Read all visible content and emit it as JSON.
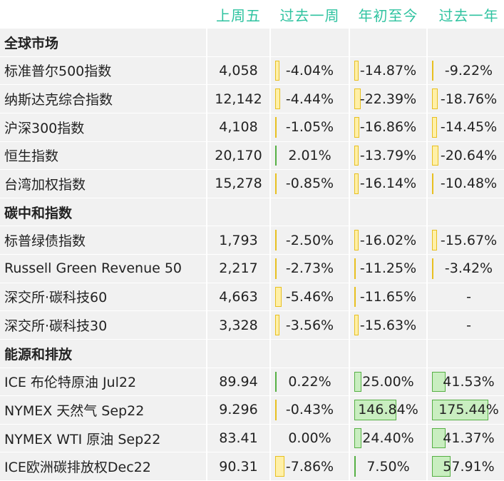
{
  "headers": [
    "",
    "上周五",
    "过去一周",
    "年初至今",
    "过去一年"
  ],
  "rows": [
    {
      "type": "section",
      "name": "全球市场"
    },
    {
      "type": "data",
      "name": "标准普尔500指数",
      "close": "4,058",
      "week": {
        "text": "-4.04%",
        "value": -4.04
      },
      "ytd": {
        "text": "-14.87%",
        "value": -14.87
      },
      "year": {
        "text": "-9.22%",
        "value": -9.22
      }
    },
    {
      "type": "data",
      "name": "纳斯达克综合指数",
      "close": "12,142",
      "week": {
        "text": "-4.44%",
        "value": -4.44
      },
      "ytd": {
        "text": "-22.39%",
        "value": -22.39
      },
      "year": {
        "text": "-18.76%",
        "value": -18.76
      }
    },
    {
      "type": "data",
      "name": "沪深300指数",
      "close": "4,108",
      "week": {
        "text": "-1.05%",
        "value": -1.05
      },
      "ytd": {
        "text": "-16.86%",
        "value": -16.86
      },
      "year": {
        "text": "-14.45%",
        "value": -14.45
      }
    },
    {
      "type": "data",
      "name": "恒生指数",
      "close": "20,170",
      "week": {
        "text": "2.01%",
        "value": 2.01
      },
      "ytd": {
        "text": "-13.79%",
        "value": -13.79
      },
      "year": {
        "text": "-20.64%",
        "value": -20.64
      }
    },
    {
      "type": "data",
      "name": "台湾加权指数",
      "close": "15,278",
      "week": {
        "text": "-0.85%",
        "value": -0.85
      },
      "ytd": {
        "text": "-16.14%",
        "value": -16.14
      },
      "year": {
        "text": "-10.48%",
        "value": -10.48
      }
    },
    {
      "type": "section",
      "name": "碳中和指数"
    },
    {
      "type": "data",
      "name": "标普绿债指数",
      "close": "1,793",
      "week": {
        "text": "-2.50%",
        "value": -2.5
      },
      "ytd": {
        "text": "-16.02%",
        "value": -16.02
      },
      "year": {
        "text": "-15.67%",
        "value": -15.67
      }
    },
    {
      "type": "data",
      "name": "Russell Green Revenue 50",
      "close": "2,217",
      "week": {
        "text": "-2.73%",
        "value": -2.73
      },
      "ytd": {
        "text": "-11.25%",
        "value": -11.25
      },
      "year": {
        "text": "-3.42%",
        "value": -3.42
      }
    },
    {
      "type": "data",
      "name": "深交所·碳科技60",
      "close": "4,663",
      "week": {
        "text": "-5.46%",
        "value": -5.46
      },
      "ytd": {
        "text": "-11.65%",
        "value": -11.65
      },
      "year": {
        "text": "-",
        "value": null
      }
    },
    {
      "type": "data",
      "name": "深交所·碳科技30",
      "close": "3,328",
      "week": {
        "text": "-3.56%",
        "value": -3.56
      },
      "ytd": {
        "text": "-15.63%",
        "value": -15.63
      },
      "year": {
        "text": "-",
        "value": null
      }
    },
    {
      "type": "section",
      "name": "能源和排放"
    },
    {
      "type": "data",
      "name": "ICE 布伦特原油 Jul22",
      "close": "89.94",
      "week": {
        "text": "0.22%",
        "value": 0.22
      },
      "ytd": {
        "text": "25.00%",
        "value": 25.0
      },
      "year": {
        "text": "41.53%",
        "value": 41.53
      }
    },
    {
      "type": "data",
      "name": "NYMEX 天然气 Sep22",
      "close": "9.296",
      "week": {
        "text": "-0.43%",
        "value": -0.43
      },
      "ytd": {
        "text": "146.84%",
        "value": 146.84
      },
      "year": {
        "text": "175.44%",
        "value": 175.44
      }
    },
    {
      "type": "data",
      "name": "NYMEX WTI 原油 Sep22",
      "close": "83.41",
      "week": {
        "text": "0.00%",
        "value": 0.0
      },
      "ytd": {
        "text": "24.40%",
        "value": 24.4
      },
      "year": {
        "text": "41.37%",
        "value": 41.37
      }
    },
    {
      "type": "data",
      "name": "ICE欧洲碳排放权Dec22",
      "close": "90.31",
      "week": {
        "text": "-7.86%",
        "value": -7.86
      },
      "ytd": {
        "text": "7.50%",
        "value": 7.5
      },
      "year": {
        "text": "57.91%",
        "value": 57.91
      }
    }
  ],
  "colors": {
    "header_text": "#2fc3a0",
    "negative_bar": "#e8c020",
    "positive_bar": "#56b044",
    "row_shade": "#f1f1f1"
  }
}
